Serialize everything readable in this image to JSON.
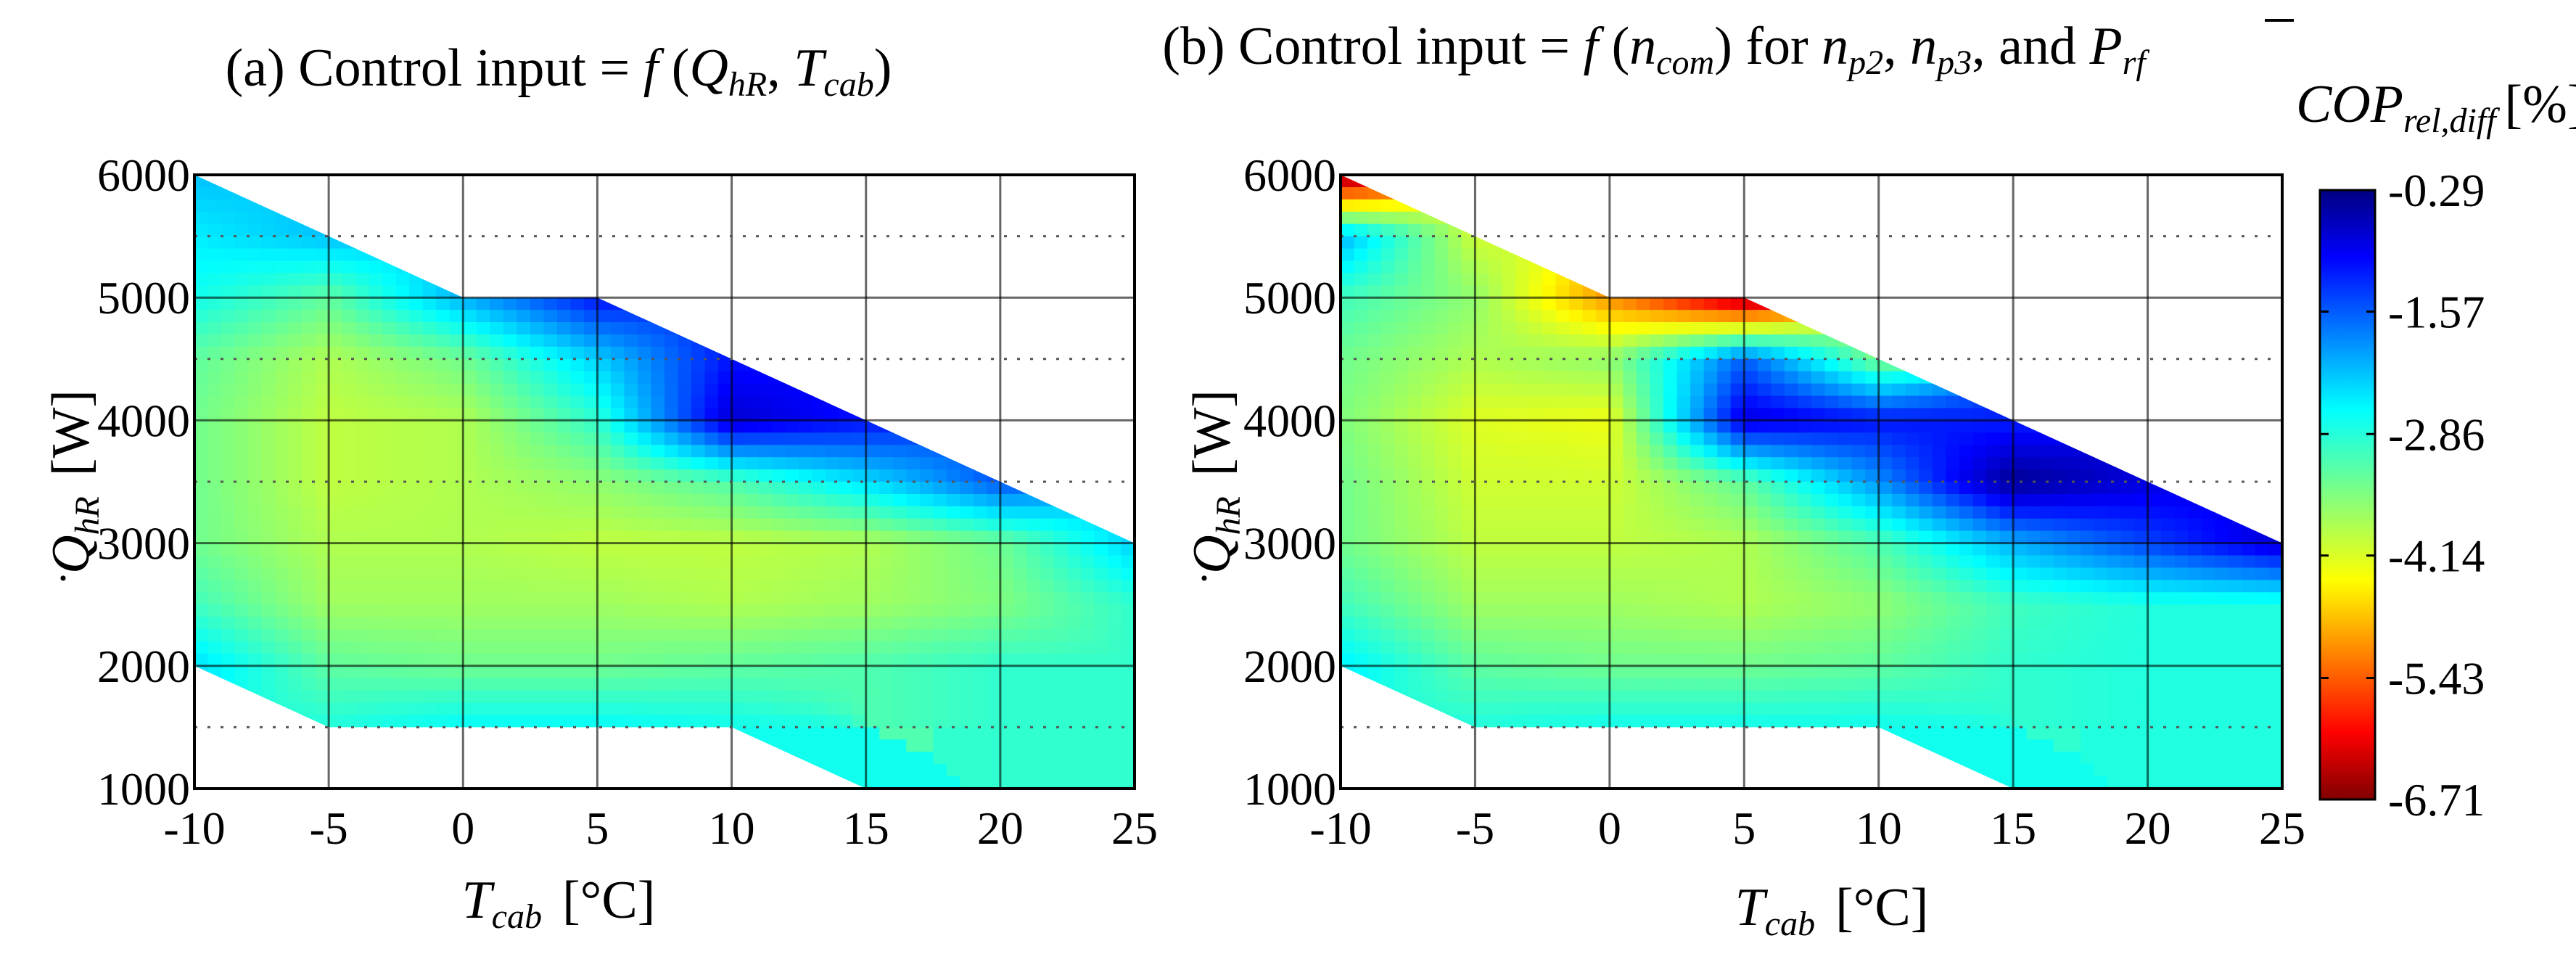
{
  "chart_data": [
    {
      "type": "contour",
      "panel": "a",
      "title": {
        "prefix": "(a) Control input = ",
        "f": "f",
        "open": " (",
        "q": "Q",
        "q_sub": "hR",
        "sep": ", ",
        "t": "T",
        "t_sub": "cab",
        "close": ")"
      },
      "xlabel": {
        "var": "T",
        "sub": "cab",
        "unit": "[°C]"
      },
      "ylabel": {
        "var": "Q",
        "sub": "hR",
        "unit": "[W]"
      },
      "xlim": [
        -10,
        25
      ],
      "ylim": [
        1000,
        6000
      ],
      "xticks": [
        "-10",
        "-5",
        "0",
        "5",
        "10",
        "15",
        "20",
        "25"
      ],
      "yticks": [
        "1000",
        "2000",
        "3000",
        "4000",
        "5000",
        "6000"
      ],
      "x": [
        -10,
        -5,
        0,
        5,
        10,
        15,
        20,
        25
      ],
      "y": [
        1500,
        2000,
        2500,
        3000,
        3500,
        4000,
        4500,
        5000,
        5500,
        6000
      ],
      "z": [
        [
          null,
          -2.9,
          -2.7,
          -2.7,
          -2.8,
          null,
          null,
          null
        ],
        [
          -2.5,
          -3.3,
          -3.4,
          -3.4,
          -3.3,
          -3.2,
          -3.0,
          null
        ],
        [
          -3.1,
          -3.7,
          -3.7,
          -3.7,
          -3.8,
          -3.7,
          -3.5,
          -3.0
        ],
        [
          -3.4,
          -3.8,
          -3.8,
          -3.9,
          -3.9,
          -3.8,
          -3.4,
          -2.4
        ],
        [
          -3.4,
          -3.9,
          -3.8,
          -3.6,
          -3.2,
          -2.5,
          -1.6,
          null
        ],
        [
          -3.4,
          -3.9,
          -3.8,
          -3.0,
          -0.8,
          -1.2,
          null,
          null
        ],
        [
          -3.3,
          -3.8,
          -3.4,
          -2.4,
          -1.2,
          null,
          null,
          null
        ],
        [
          -2.8,
          -3.3,
          -2.2,
          -1.2,
          null,
          null,
          null,
          null
        ],
        [
          -2.6,
          -2.3,
          null,
          null,
          null,
          null,
          null,
          null
        ],
        [
          -2.3,
          null,
          null,
          null,
          null,
          null,
          null,
          null
        ]
      ],
      "valid_region": [
        [
          -10,
          2000
        ],
        [
          -5,
          1500
        ],
        [
          10,
          1500
        ],
        [
          15,
          1000
        ],
        [
          25,
          1000
        ],
        [
          25,
          3000
        ],
        [
          15,
          4000
        ],
        [
          5,
          5000
        ],
        [
          0,
          5000
        ],
        [
          -10,
          6000
        ]
      ],
      "dotted_gridlines": [
        1500,
        3500,
        4500,
        5500
      ]
    },
    {
      "type": "contour",
      "panel": "b",
      "title": {
        "prefix": "(b) Control input = ",
        "f": "f",
        "open": " (",
        "n": "n",
        "n_sub": "com",
        "mid": ") for ",
        "n2": "n",
        "n2_sub": "p2",
        "sep1": ", ",
        "n3": "n",
        "n3_sub": "p3",
        "sep2": ", and ",
        "p": "P",
        "p_sub": "rf"
      },
      "xlabel": {
        "var": "T",
        "sub": "cab",
        "unit": "[°C]"
      },
      "ylabel": {
        "var": "Q",
        "sub": "hR",
        "unit": "[W]"
      },
      "xlim": [
        -10,
        25
      ],
      "ylim": [
        1000,
        6000
      ],
      "xticks": [
        "-10",
        "-5",
        "0",
        "5",
        "10",
        "15",
        "20",
        "25"
      ],
      "yticks": [
        "1000",
        "2000",
        "3000",
        "4000",
        "5000",
        "6000"
      ],
      "x": [
        -10,
        -5,
        0,
        5,
        10,
        15,
        20,
        25
      ],
      "y": [
        1500,
        2000,
        2500,
        3000,
        3500,
        4000,
        4500,
        5000,
        5500,
        6000
      ],
      "z": [
        [
          null,
          -2.9,
          -2.8,
          -2.8,
          -2.8,
          null,
          null,
          null
        ],
        [
          -2.6,
          -3.3,
          -3.4,
          -3.4,
          -3.3,
          -3.0,
          -2.9,
          null
        ],
        [
          -3.1,
          -3.7,
          -3.7,
          -3.8,
          -3.6,
          -3.1,
          -2.9,
          -2.9
        ],
        [
          -3.4,
          -3.9,
          -3.9,
          -3.8,
          -3.2,
          -2.2,
          -1.5,
          -0.8
        ],
        [
          -3.4,
          -4.0,
          -4.0,
          -3.3,
          -2.0,
          -0.4,
          -0.9,
          null
        ],
        [
          -3.5,
          -4.1,
          -4.2,
          -0.9,
          -1.2,
          -1.3,
          null,
          null
        ],
        [
          -3.4,
          -3.8,
          -3.6,
          -1.7,
          -3.5,
          null,
          null,
          null
        ],
        [
          -3.1,
          -3.6,
          -5.0,
          -6.5,
          null,
          null,
          null,
          null
        ],
        [
          -2.2,
          -4.0,
          null,
          null,
          null,
          null,
          null,
          null
        ],
        [
          -6.6,
          null,
          null,
          null,
          null,
          null,
          null,
          null
        ]
      ],
      "valid_region": [
        [
          -10,
          2000
        ],
        [
          -5,
          1500
        ],
        [
          10,
          1500
        ],
        [
          15,
          1000
        ],
        [
          25,
          1000
        ],
        [
          25,
          3000
        ],
        [
          15,
          4000
        ],
        [
          5,
          5000
        ],
        [
          0,
          5000
        ],
        [
          -10,
          6000
        ]
      ],
      "dotted_gridlines": [
        1500,
        3500,
        4500,
        5500
      ],
      "colorbar": {
        "label": {
          "var": "COP",
          "sub": "rel,diff",
          "unit": "[%]"
        },
        "ticks": [
          "-0.29",
          "-1.57",
          "-2.86",
          "-4.14",
          "-5.43",
          "-6.71"
        ],
        "tick_values": [
          -0.29,
          -1.57,
          -2.86,
          -4.14,
          -5.43,
          -6.71
        ],
        "range": [
          -6.71,
          -0.29
        ],
        "colormap": "jet"
      }
    }
  ]
}
